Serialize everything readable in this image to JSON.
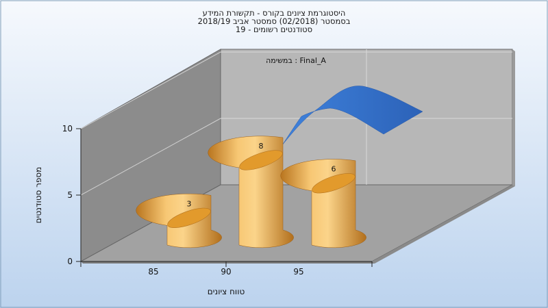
{
  "chart_data": {
    "type": "bar",
    "title_lines": [
      "היסטוגרמת ציונים בקורס - תקשורת המידע",
      "בסמסטר  (02/2018)  סמסטר אביב 2018/19",
      "סטודנטים רשומים - 19"
    ],
    "task_label": "במשימה : Final_A",
    "xlabel": "טווח ציונים",
    "ylabel": "מספר סטודנטים",
    "categories": [
      "85",
      "90",
      "95"
    ],
    "values": [
      3,
      8,
      6
    ],
    "y_ticks": [
      "0",
      "5",
      "10"
    ],
    "ylim": [
      0,
      10
    ],
    "curve": "normal-distribution overlay",
    "colors": {
      "bar": "#e8a43c",
      "bar_dark": "#a8661a",
      "curve": "#3574cf",
      "wall_left": "#8c8c8c",
      "wall_back": "#b7b7b7",
      "floor": "#a2a2a2"
    }
  }
}
